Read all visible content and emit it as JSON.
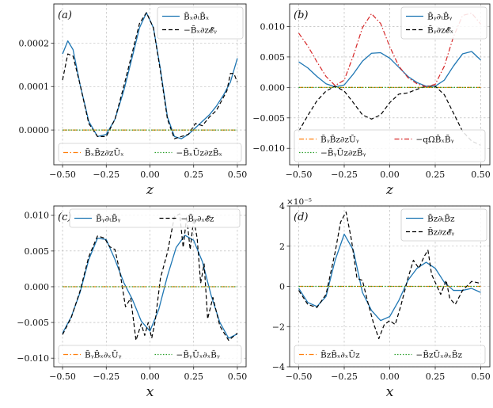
{
  "chart_data": [
    {
      "type": "line",
      "panel_label": "(a)",
      "xlabel": "z",
      "xlim": [
        -0.55,
        0.55
      ],
      "ylim": [
        -8e-05,
        0.00029
      ],
      "x_ticks": [
        -0.5,
        -0.25,
        0.0,
        0.25,
        0.5
      ],
      "x_tick_labels": [
        "−0.50",
        "−0.25",
        "0.00",
        "0.25",
        "0.50"
      ],
      "y_ticks": [
        0.0,
        0.0001,
        0.0002
      ],
      "y_tick_labels": [
        "0.0000",
        "0.0001",
        "0.0002"
      ],
      "legends": [
        {
          "position": "upper-right",
          "ncol": 1,
          "entries": [
            0,
            1
          ]
        },
        {
          "position": "lower",
          "ncol": 2,
          "entries": [
            2,
            3
          ]
        }
      ],
      "series": [
        {
          "name": "B̄ₓ∂ₜB̄ₓ",
          "color": "#1f77b4",
          "style": "solid",
          "x": [
            -0.5,
            -0.47,
            -0.44,
            -0.4,
            -0.35,
            -0.3,
            -0.25,
            -0.2,
            -0.15,
            -0.1,
            -0.06,
            -0.02,
            0.02,
            0.06,
            0.1,
            0.14,
            0.18,
            0.22,
            0.26,
            0.3,
            0.34,
            0.38,
            0.42,
            0.46,
            0.5
          ],
          "y": [
            0.000175,
            0.000205,
            0.000185,
            0.000105,
            2e-05,
            -1.5e-05,
            -1e-05,
            2.5e-05,
            9e-05,
            0.00017,
            0.000235,
            0.00027,
            0.000235,
            0.00014,
            3e-05,
            -1.5e-05,
            -2e-05,
            -1e-05,
            5e-06,
            2e-05,
            3.5e-05,
            5.5e-05,
            8e-05,
            0.00011,
            0.000165
          ]
        },
        {
          "name": "−B̄ₓ∂z𝓔̄ᵧ",
          "color": "#000000",
          "style": "dashed",
          "x": [
            -0.5,
            -0.47,
            -0.44,
            -0.4,
            -0.35,
            -0.3,
            -0.25,
            -0.2,
            -0.15,
            -0.1,
            -0.06,
            -0.02,
            0.02,
            0.06,
            0.1,
            0.14,
            0.18,
            0.22,
            0.26,
            0.3,
            0.34,
            0.38,
            0.42,
            0.44,
            0.46,
            0.48,
            0.5
          ],
          "y": [
            0.000115,
            0.000175,
            0.00017,
            0.000105,
            1.5e-05,
            -1.5e-05,
            -1.5e-05,
            2.5e-05,
            0.0001,
            0.00018,
            0.000245,
            0.00027,
            0.000235,
            0.000135,
            2.5e-05,
            -2e-05,
            -1.5e-05,
            -1e-05,
            1.5e-05,
            1e-05,
            3e-05,
            4.5e-05,
            7.5e-05,
            9e-05,
            0.00013,
            0.00013,
            0.00011
          ]
        },
        {
          "name": "B̄ₓB̄z∂zŪₓ",
          "color": "#ff7f0e",
          "style": "dashdot",
          "x": [
            -0.5,
            0.5
          ],
          "y": [
            0.0,
            0.0
          ]
        },
        {
          "name": "−B̄ₓŪz∂zB̄ₓ",
          "color": "#2ca02c",
          "style": "dotted",
          "x": [
            -0.5,
            0.5
          ],
          "y": [
            0.0,
            0.0
          ]
        }
      ]
    },
    {
      "type": "line",
      "panel_label": "(b)",
      "xlabel": "z",
      "xlim": [
        -0.55,
        0.55
      ],
      "ylim": [
        -0.0127,
        0.0137
      ],
      "x_ticks": [
        -0.5,
        -0.25,
        0.0,
        0.25,
        0.5
      ],
      "x_tick_labels": [
        "−0.50",
        "−0.25",
        "0.00",
        "0.25",
        "0.50"
      ],
      "y_ticks": [
        -0.01,
        -0.005,
        0.0,
        0.005,
        0.01
      ],
      "y_tick_labels": [
        "−0.010",
        "−0.005",
        "0.000",
        "0.005",
        "0.010"
      ],
      "legends": [
        {
          "position": "upper-right",
          "ncol": 1,
          "entries": [
            0,
            1
          ]
        },
        {
          "position": "lower",
          "ncol": 2,
          "entries": [
            2,
            4,
            3
          ]
        }
      ],
      "series": [
        {
          "name": "B̄ᵧ∂ₜB̄ᵧ",
          "color": "#1f77b4",
          "style": "solid",
          "x": [
            -0.5,
            -0.45,
            -0.4,
            -0.35,
            -0.3,
            -0.25,
            -0.2,
            -0.15,
            -0.1,
            -0.05,
            0.0,
            0.05,
            0.1,
            0.15,
            0.2,
            0.25,
            0.3,
            0.35,
            0.4,
            0.45,
            0.5
          ],
          "y": [
            0.0042,
            0.0032,
            0.0018,
            0.0006,
            0.0001,
            0.0004,
            0.0022,
            0.0043,
            0.0056,
            0.0057,
            0.0048,
            0.0033,
            0.0018,
            0.0008,
            0.0002,
            0.0002,
            0.0012,
            0.0035,
            0.0055,
            0.0059,
            0.0045
          ]
        },
        {
          "name": "B̄ᵧ∂z𝓔̄ₓ",
          "color": "#000000",
          "style": "dashed",
          "x": [
            -0.5,
            -0.45,
            -0.4,
            -0.35,
            -0.3,
            -0.25,
            -0.2,
            -0.15,
            -0.1,
            -0.05,
            0.0,
            0.05,
            0.1,
            0.15,
            0.2,
            0.25,
            0.3,
            0.35,
            0.4,
            0.45,
            0.5
          ],
          "y": [
            -0.0072,
            -0.0046,
            -0.0022,
            -0.0006,
            0.0002,
            -0.0006,
            -0.0025,
            -0.0045,
            -0.0052,
            -0.0045,
            -0.0025,
            -0.0011,
            -0.0009,
            -0.0003,
            0.0002,
            0.0002,
            -0.0012,
            -0.0042,
            -0.0072,
            -0.0088,
            -0.0095
          ]
        },
        {
          "name": "B̄ᵧB̄z∂zŪᵧ",
          "color": "#ff7f0e",
          "style": "dashdot",
          "x": [
            -0.5,
            0.5
          ],
          "y": [
            0.0,
            0.0
          ]
        },
        {
          "name": "−B̄ᵧŪz∂zB̄ᵧ",
          "color": "#2ca02c",
          "style": "dotted",
          "x": [
            -0.5,
            0.5
          ],
          "y": [
            0.0,
            0.0
          ]
        },
        {
          "name": "−qΩB̄ₓB̄ᵧ",
          "color": "#d62728",
          "style": "dashdot",
          "x": [
            -0.5,
            -0.45,
            -0.4,
            -0.35,
            -0.3,
            -0.25,
            -0.2,
            -0.15,
            -0.1,
            -0.05,
            0.0,
            0.05,
            0.1,
            0.15,
            0.2,
            0.25,
            0.3,
            0.35,
            0.4,
            0.45,
            0.5
          ],
          "y": [
            0.0089,
            0.0068,
            0.0042,
            0.0018,
            0.0003,
            0.0012,
            0.0052,
            0.0098,
            0.0121,
            0.0105,
            0.0067,
            0.0035,
            0.0016,
            0.0006,
            0.0001,
            0.0005,
            0.0035,
            0.0083,
            0.0118,
            0.0122,
            0.0104
          ]
        }
      ]
    },
    {
      "type": "line",
      "panel_label": "(c)",
      "xlabel": "x",
      "xlim": [
        -0.55,
        0.55
      ],
      "ylim": [
        -0.0112,
        0.0113
      ],
      "x_ticks": [
        -0.5,
        -0.25,
        0.0,
        0.25,
        0.5
      ],
      "x_tick_labels": [
        "−0.50",
        "−0.25",
        "0.00",
        "0.25",
        "0.50"
      ],
      "y_ticks": [
        -0.01,
        -0.005,
        0.0,
        0.005,
        0.01
      ],
      "y_tick_labels": [
        "−0.010",
        "−0.005",
        "0.000",
        "0.005",
        "0.010"
      ],
      "legends": [
        {
          "position": "upper",
          "ncol": 2,
          "entries": [
            0,
            1
          ]
        },
        {
          "position": "lower",
          "ncol": 2,
          "entries": [
            2,
            3
          ]
        }
      ],
      "series": [
        {
          "name": "B̄ᵧ∂ₜB̄ᵧ",
          "color": "#1f77b4",
          "style": "solid",
          "x": [
            -0.5,
            -0.45,
            -0.4,
            -0.35,
            -0.3,
            -0.25,
            -0.2,
            -0.15,
            -0.1,
            -0.05,
            0.0,
            0.05,
            0.1,
            0.15,
            0.2,
            0.25,
            0.3,
            0.35,
            0.4,
            0.45,
            0.5
          ],
          "y": [
            -0.0065,
            -0.0042,
            -0.0008,
            0.0038,
            0.0068,
            0.0066,
            0.0038,
            0.0006,
            -0.0018,
            -0.0048,
            -0.0062,
            -0.0032,
            0.0015,
            0.0055,
            0.0072,
            0.0065,
            0.0035,
            -0.0012,
            -0.005,
            -0.0072,
            -0.0066
          ]
        },
        {
          "name": "−B̄ᵧ∂ₓ𝓔̄z",
          "color": "#000000",
          "style": "dashed",
          "x": [
            -0.5,
            -0.45,
            -0.4,
            -0.35,
            -0.3,
            -0.26,
            -0.23,
            -0.2,
            -0.17,
            -0.14,
            -0.11,
            -0.08,
            -0.05,
            -0.03,
            -0.01,
            0.01,
            0.03,
            0.06,
            0.1,
            0.14,
            0.17,
            0.19,
            0.21,
            0.23,
            0.25,
            0.27,
            0.29,
            0.31,
            0.33,
            0.36,
            0.4,
            0.45,
            0.5
          ],
          "y": [
            -0.0067,
            -0.0043,
            -0.0006,
            0.0042,
            0.0071,
            0.0068,
            0.0056,
            0.0052,
            0.0018,
            -0.0028,
            -0.0016,
            -0.0075,
            -0.0052,
            -0.0068,
            -0.005,
            -0.0072,
            -0.0048,
            0.0012,
            0.0048,
            0.0098,
            0.0102,
            0.0055,
            0.0098,
            0.0052,
            0.0095,
            0.0068,
            0.0005,
            0.0032,
            -0.0045,
            -0.0015,
            -0.0055,
            -0.0075,
            -0.0065
          ]
        },
        {
          "name": "B̄ᵧB̄ₓ∂ₓŪᵧ",
          "color": "#ff7f0e",
          "style": "dashdot",
          "x": [
            -0.5,
            0.5
          ],
          "y": [
            0.0,
            0.0
          ]
        },
        {
          "name": "−B̄ᵧŪₓ∂ₓB̄ᵧ",
          "color": "#2ca02c",
          "style": "dotted",
          "x": [
            -0.5,
            0.5
          ],
          "y": [
            0.0,
            0.0
          ]
        }
      ]
    },
    {
      "type": "line",
      "panel_label": "(d)",
      "xlabel": "x",
      "xlim": [
        -0.55,
        0.55
      ],
      "ylim": [
        -4,
        4
      ],
      "y_scale_label": "×10⁻⁵",
      "x_ticks": [
        -0.5,
        -0.25,
        0.0,
        0.25,
        0.5
      ],
      "x_tick_labels": [
        "−0.50",
        "−0.25",
        "0.00",
        "0.25",
        "0.50"
      ],
      "y_ticks": [
        -4,
        -2,
        0,
        2,
        4
      ],
      "y_tick_labels": [
        "−4",
        "−2",
        "0",
        "2",
        "4"
      ],
      "legends": [
        {
          "position": "upper-right",
          "ncol": 1,
          "entries": [
            0,
            1
          ]
        },
        {
          "position": "lower",
          "ncol": 2,
          "entries": [
            2,
            3
          ]
        }
      ],
      "series": [
        {
          "name": "B̄z∂ₜB̄z",
          "color": "#1f77b4",
          "style": "solid",
          "x": [
            -0.5,
            -0.45,
            -0.4,
            -0.35,
            -0.3,
            -0.25,
            -0.2,
            -0.15,
            -0.1,
            -0.05,
            0.0,
            0.05,
            0.1,
            0.15,
            0.2,
            0.25,
            0.3,
            0.35,
            0.4,
            0.45,
            0.5
          ],
          "y": [
            -0.1,
            -0.8,
            -1.0,
            -0.5,
            1.3,
            2.6,
            1.8,
            -0.3,
            -1.2,
            -1.7,
            -1.5,
            -0.7,
            0.3,
            0.9,
            1.2,
            0.9,
            0.2,
            -0.2,
            -0.2,
            -0.1,
            -0.3
          ]
        },
        {
          "name": "B̄z∂z𝓔̄ᵧ",
          "color": "#000000",
          "style": "dashed",
          "x": [
            -0.5,
            -0.45,
            -0.4,
            -0.35,
            -0.3,
            -0.27,
            -0.24,
            -0.21,
            -0.18,
            -0.15,
            -0.12,
            -0.09,
            -0.06,
            -0.03,
            0.0,
            0.03,
            0.06,
            0.1,
            0.13,
            0.16,
            0.19,
            0.21,
            0.23,
            0.26,
            0.28,
            0.31,
            0.33,
            0.36,
            0.4,
            0.45,
            0.5
          ],
          "y": [
            -0.2,
            -0.9,
            -1.05,
            -0.4,
            1.7,
            3.2,
            3.7,
            2.3,
            0.4,
            0.3,
            -0.8,
            -1.8,
            -2.6,
            -1.9,
            -1.7,
            -1.9,
            -1.0,
            0.4,
            1.3,
            0.9,
            1.5,
            1.8,
            0.6,
            0.0,
            -0.4,
            0.3,
            -0.6,
            -0.9,
            -0.2,
            0.25,
            0.15
          ]
        },
        {
          "name": "B̄zB̄ₓ∂ₓŪz",
          "color": "#ff7f0e",
          "style": "dashdot",
          "x": [
            -0.5,
            0.5
          ],
          "y": [
            0.0,
            0.0
          ]
        },
        {
          "name": "−B̄zŪₓ∂ₓB̄z",
          "color": "#2ca02c",
          "style": "dotted",
          "x": [
            -0.5,
            0.5
          ],
          "y": [
            0.0,
            0.0
          ]
        }
      ]
    }
  ]
}
